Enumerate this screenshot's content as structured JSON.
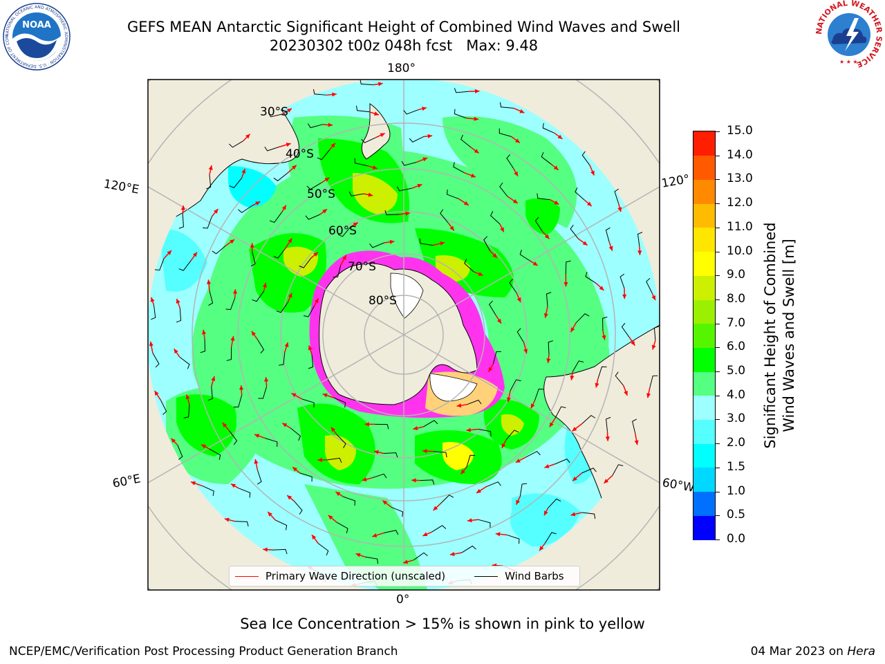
{
  "header": {
    "title_line1": "GEFS MEAN Antarctic Significant Height of Combined Wind Waves and Swell",
    "title_line2": "20230302 t00z 048h fcst   Max: 9.48"
  },
  "logos": {
    "noaa_text": "NOAA",
    "noaa_ring_text": "NATIONAL OCEANIC AND ATMOSPHERIC ADMINISTRATION · U.S. DEPARTMENT OF COMMERCE",
    "nws_ring_text": "NATIONAL WEATHER SERVICE"
  },
  "map": {
    "projection": "south polar stereographic",
    "longitude_labels": {
      "top": "180°",
      "bottom": "0°",
      "left_upper": "120°E",
      "left_lower": "60°E",
      "right_upper": "120°",
      "right_lower": "60°W"
    },
    "latitude_labels": [
      "30°S",
      "40°S",
      "50°S",
      "60°S",
      "70°S",
      "80°S"
    ],
    "legend": {
      "wave_label": "Primary Wave Direction (unscaled)",
      "barb_label": "Wind Barbs",
      "wave_color": "#ff0000",
      "barb_color": "#000000"
    },
    "colors": {
      "land": "#efecdc",
      "ice_pink": "#ff33ee",
      "ice_yellow": "#ffd27a",
      "frame": "#000000",
      "grid": "#b4b4b4"
    }
  },
  "colorbar": {
    "label_line1": "Significant Height of Combined",
    "label_line2": "Wind Waves and Swell [m]",
    "levels": [
      "0.0",
      "0.5",
      "1.0",
      "1.5",
      "2.0",
      "3.0",
      "4.0",
      "5.0",
      "6.0",
      "7.0",
      "8.0",
      "9.0",
      "10.0",
      "11.0",
      "12.0",
      "13.0",
      "14.0",
      "15.0"
    ],
    "colors": [
      "#0000ff",
      "#0070ff",
      "#00d8ff",
      "#00ffff",
      "#55ffff",
      "#9dffff",
      "#55ff82",
      "#00ff00",
      "#55f500",
      "#9af000",
      "#ccf000",
      "#ffff00",
      "#ffe600",
      "#ffbb00",
      "#ff8a00",
      "#ff5a00",
      "#ff1e00"
    ]
  },
  "footer": {
    "ice_note": "Sea Ice Concentration > 15% is shown in pink to yellow",
    "credit": "NCEP/EMC/Verification Post Processing Product Generation Branch",
    "date": "04 Mar 2023 on ",
    "host": "Hera"
  }
}
